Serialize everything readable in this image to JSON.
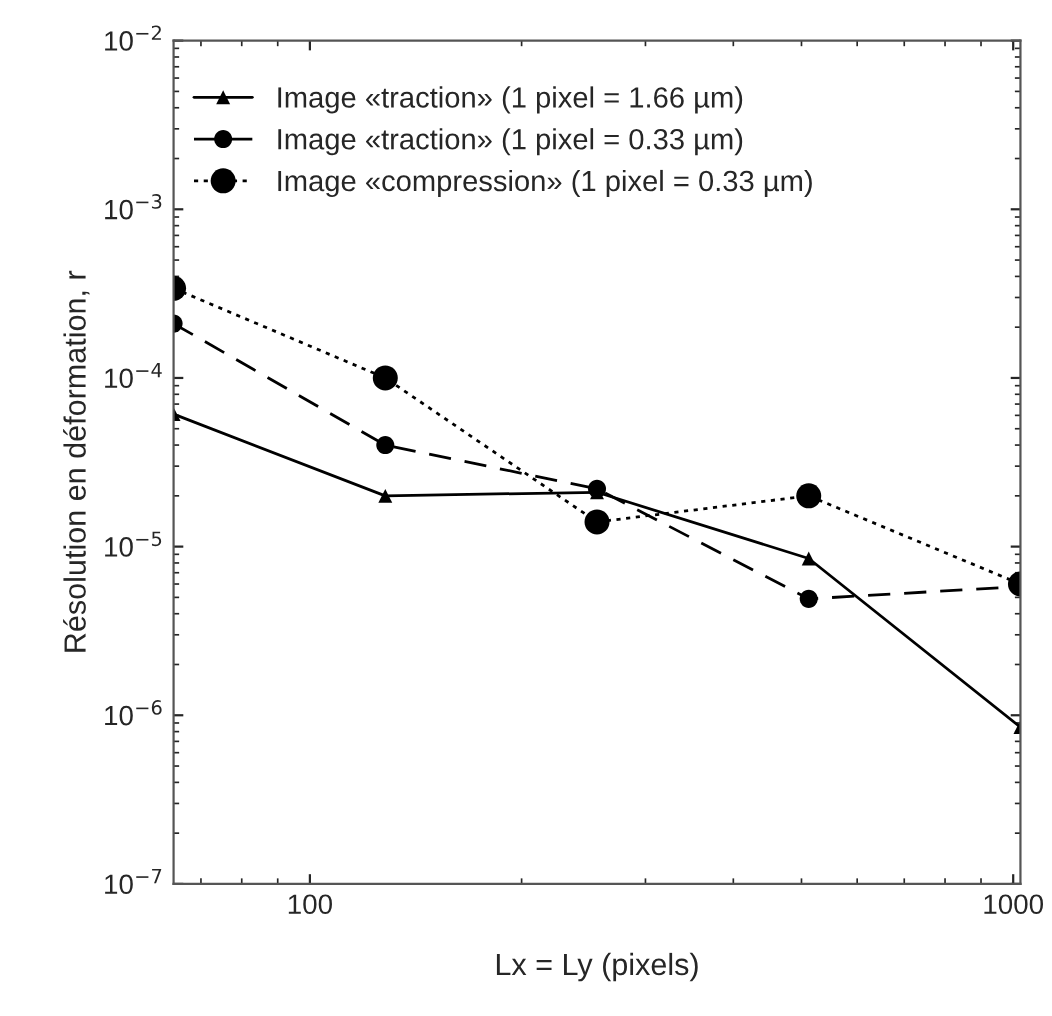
{
  "chart_data": {
    "type": "line",
    "xlabel": "Lx = Ly (pixels)",
    "ylabel": "Résolution en déformation, r",
    "x": [
      64,
      128,
      256,
      512,
      1024
    ],
    "series": [
      {
        "name": "Image «traction» (1 pixel = 1.66 µm)",
        "color": "#000000",
        "marker": "triangle",
        "line_style": "solid",
        "values": [
          6.1e-05,
          2e-05,
          2.1e-05,
          8.5e-06,
          8.5e-07
        ]
      },
      {
        "name": "Image «traction» (1 pixel = 0.33 µm)",
        "color": "#000000",
        "marker": "circle",
        "line_style": "dashed",
        "values": [
          0.00021,
          4e-05,
          2.2e-05,
          4.9e-06,
          5.8e-06
        ]
      },
      {
        "name": "Image «compression» (1 pixel = 0.33 µm)",
        "color": "#000000",
        "marker": "circle",
        "line_style": "dotted",
        "values": [
          0.00034,
          0.0001,
          1.4e-05,
          2e-05,
          6e-06
        ]
      }
    ],
    "log": "xy",
    "xlim": [
      64,
      1024
    ],
    "ylim": [
      1e-07,
      0.01
    ],
    "xticks": [
      100,
      1000
    ],
    "yticks": [
      {
        "value": 1e-07,
        "label": "10$^{−7}$"
      },
      {
        "value": 1e-06,
        "label": "10$^{−6}$"
      },
      {
        "value": 1e-05,
        "label": "10$^{−5}$"
      },
      {
        "value": 0.0001,
        "label": "10$^{−4}$"
      },
      {
        "value": 0.001,
        "label": "10$^{−3}$"
      },
      {
        "value": 0.01,
        "label": "10$^{−2}$"
      }
    ],
    "grid": false,
    "legend": "top left"
  }
}
